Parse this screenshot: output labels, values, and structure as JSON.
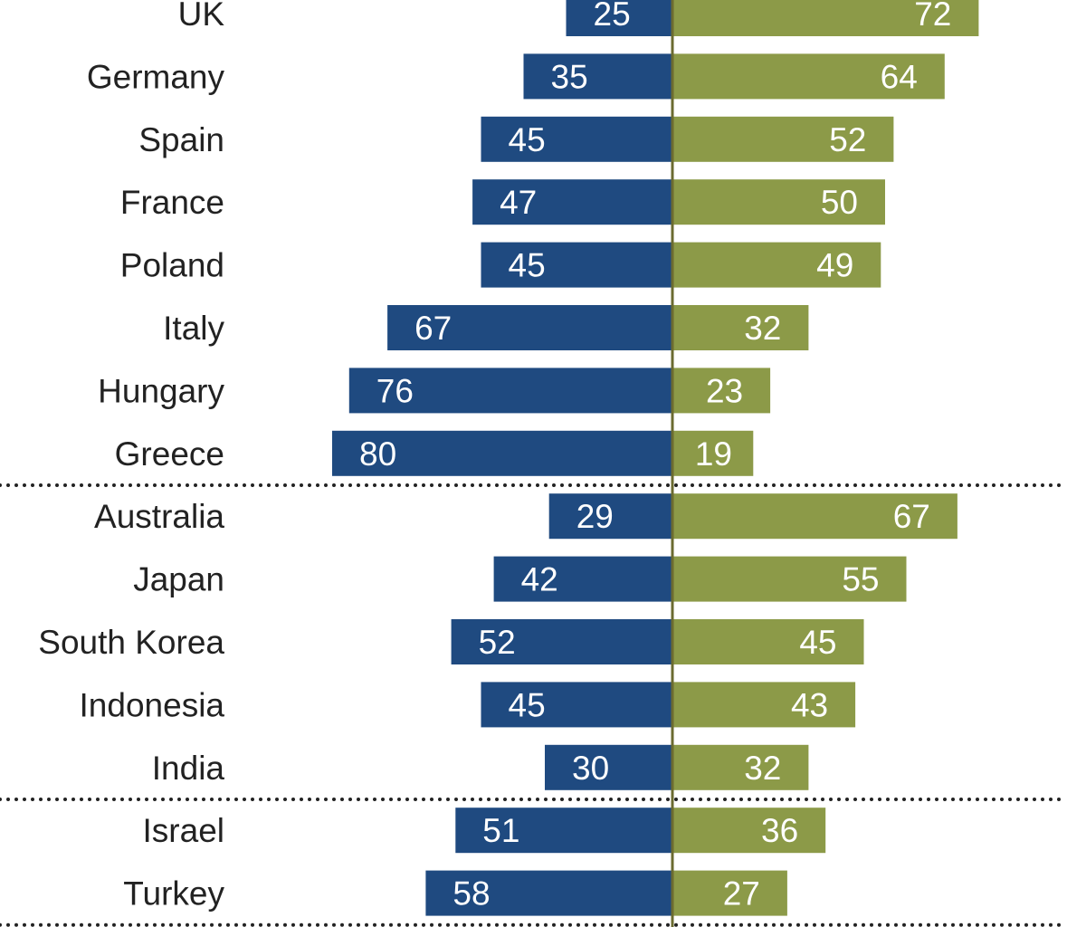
{
  "chart_data": {
    "type": "bar",
    "orientation": "horizontal-diverging",
    "categories": [
      "UK",
      "Germany",
      "Spain",
      "France",
      "Poland",
      "Italy",
      "Hungary",
      "Greece",
      "Australia",
      "Japan",
      "South Korea",
      "Indonesia",
      "India",
      "Israel",
      "Turkey"
    ],
    "groups": [
      [
        "UK",
        "Germany",
        "Spain",
        "France",
        "Poland",
        "Italy",
        "Hungary",
        "Greece"
      ],
      [
        "Australia",
        "Japan",
        "South Korea",
        "Indonesia",
        "India"
      ],
      [
        "Israel",
        "Turkey"
      ]
    ],
    "series": [
      {
        "side": "left",
        "color": "#1f4a80",
        "values": [
          25,
          35,
          45,
          47,
          45,
          67,
          76,
          80,
          29,
          42,
          52,
          45,
          30,
          51,
          58
        ]
      },
      {
        "side": "right",
        "color": "#8c9a48",
        "values": [
          72,
          64,
          52,
          50,
          49,
          32,
          23,
          19,
          67,
          55,
          45,
          43,
          32,
          36,
          27
        ]
      }
    ],
    "axis_color": "#6b6b30",
    "grid": false
  }
}
